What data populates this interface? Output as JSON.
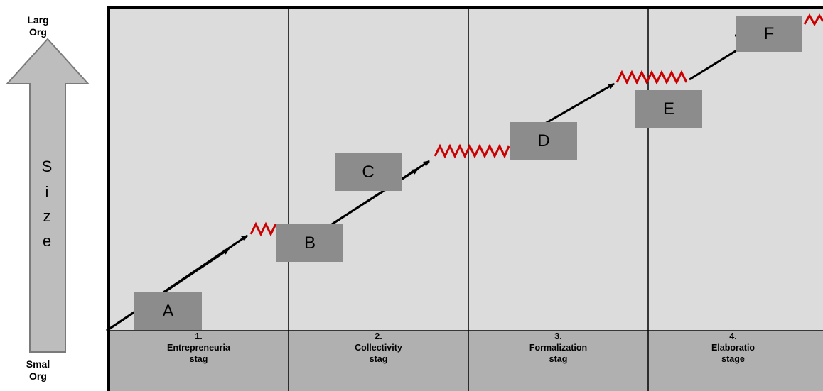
{
  "size_axis": {
    "top_label": [
      "Larg",
      "Org"
    ],
    "bottom_label": [
      "Smal",
      "Org"
    ],
    "title_letters": [
      "S",
      "i",
      "z",
      "e"
    ]
  },
  "stages": [
    {
      "number": "1.",
      "name": "Entrepreneuria",
      "suffix": "stag"
    },
    {
      "number": "2.",
      "name": "Collectivity",
      "suffix": "stag"
    },
    {
      "number": "3.",
      "name": "Formalization",
      "suffix": "stag"
    },
    {
      "number": "4.",
      "name": "Elaboratio",
      "suffix": "stage"
    }
  ],
  "boxes": [
    "A",
    "B",
    "C",
    "D",
    "E",
    "F"
  ],
  "colors": {
    "panel": "#dcdcdc",
    "footer": "#b0b0b0",
    "box": "#8c8c8c",
    "crisis": "#cc0000",
    "arrow": "#bdbdbd"
  }
}
